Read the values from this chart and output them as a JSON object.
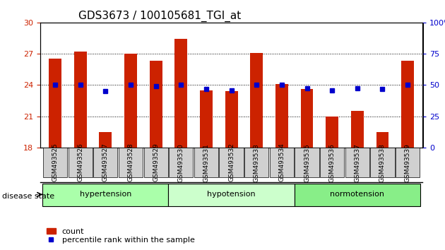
{
  "title": "GDS3673 / 100105681_TGI_at",
  "samples": [
    "GSM493525",
    "GSM493526",
    "GSM493527",
    "GSM493528",
    "GSM493529",
    "GSM493530",
    "GSM493531",
    "GSM493532",
    "GSM493533",
    "GSM493534",
    "GSM493535",
    "GSM493536",
    "GSM493537",
    "GSM493538",
    "GSM493539"
  ],
  "count_values": [
    26.5,
    27.2,
    19.5,
    27.0,
    26.3,
    28.4,
    23.5,
    23.4,
    27.1,
    24.1,
    23.6,
    21.0,
    21.5,
    19.5,
    26.3
  ],
  "percentile_values": [
    24.0,
    24.0,
    23.4,
    24.0,
    23.9,
    24.0,
    23.6,
    23.5,
    24.0,
    24.0,
    23.7,
    23.5,
    23.7,
    23.6,
    24.0
  ],
  "ylim_left": [
    18,
    30
  ],
  "ylim_right": [
    0,
    100
  ],
  "yticks_left": [
    18,
    21,
    24,
    27,
    30
  ],
  "yticks_right": [
    0,
    25,
    50,
    75,
    100
  ],
  "bar_color": "#cc2200",
  "dot_color": "#0000cc",
  "tick_label_bg": "#d0d0d0",
  "groups": [
    {
      "label": "hypertension",
      "start": 0,
      "end": 5,
      "color": "#aaffaa"
    },
    {
      "label": "hypotension",
      "start": 5,
      "end": 10,
      "color": "#ccffcc"
    },
    {
      "label": "normotension",
      "start": 10,
      "end": 15,
      "color": "#88ee88"
    }
  ],
  "disease_state_label": "disease state",
  "legend_count_label": "count",
  "legend_pct_label": "percentile rank within the sample",
  "grid_yticks": [
    21,
    24,
    27
  ],
  "title_fontsize": 11,
  "axis_fontsize": 9,
  "label_fontsize": 8
}
